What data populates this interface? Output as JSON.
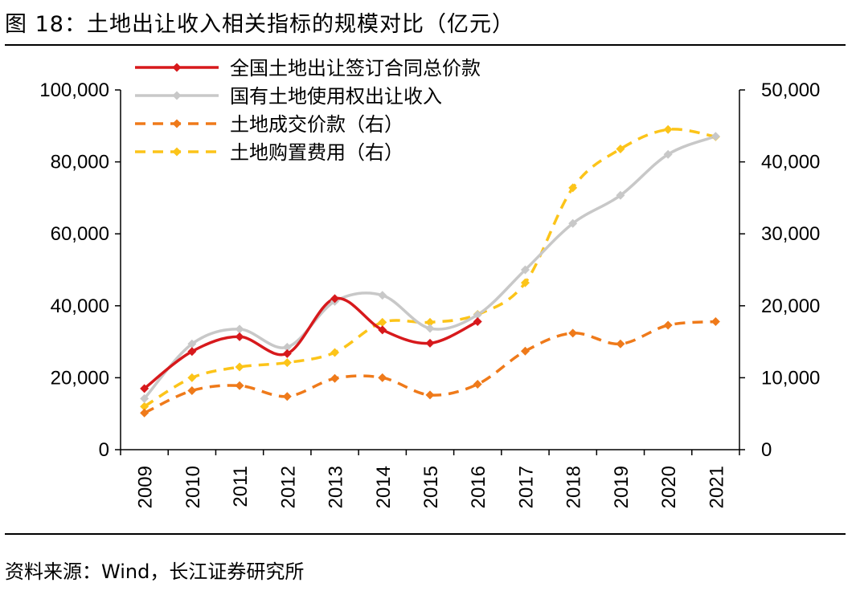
{
  "figure": {
    "title": "图 18：土地出让收入相关指标的规模对比（亿元）",
    "source": "资料来源：Wind，长江证券研究所"
  },
  "chart_data": {
    "type": "line",
    "title": "土地出让收入相关指标的规模对比（亿元）",
    "unit": "亿元",
    "categories": [
      "2009",
      "2010",
      "2011",
      "2012",
      "2013",
      "2014",
      "2015",
      "2016",
      "2017",
      "2018",
      "2019",
      "2020",
      "2021"
    ],
    "y_left": {
      "range": [
        0,
        100000
      ],
      "ticks": [
        "0",
        "20,000",
        "40,000",
        "60,000",
        "80,000",
        "100,000"
      ]
    },
    "y_right": {
      "range": [
        0,
        50000
      ],
      "ticks": [
        "0",
        "10,000",
        "20,000",
        "30,000",
        "40,000",
        "50,000"
      ]
    },
    "legend_position": "top-left",
    "series": [
      {
        "name": "全国土地出让签订合同总价款",
        "axis": "left",
        "color": "#d7191c",
        "dash": false,
        "values": [
          17000,
          27300,
          31400,
          26700,
          42000,
          33300,
          29600,
          35600,
          null,
          null,
          null,
          null,
          null
        ]
      },
      {
        "name": "国有土地使用权出让收入",
        "axis": "left",
        "color": "#c8c8c8",
        "dash": false,
        "values": [
          14200,
          29400,
          33500,
          28500,
          41200,
          42900,
          33700,
          37500,
          50000,
          62900,
          70700,
          82100,
          87100
        ]
      },
      {
        "name": "土地成交价款（右）",
        "axis": "right",
        "color": "#ef7a1a",
        "dash": true,
        "values": [
          5100,
          8200,
          8900,
          7400,
          9900,
          10000,
          7600,
          9100,
          13700,
          16200,
          14700,
          17300,
          17800
        ]
      },
      {
        "name": "土地购置费用（右）",
        "axis": "right",
        "color": "#fcc419",
        "dash": true,
        "values": [
          6000,
          10000,
          11500,
          12100,
          13500,
          17700,
          17700,
          18800,
          23200,
          36400,
          41800,
          44500,
          43500
        ]
      }
    ]
  }
}
